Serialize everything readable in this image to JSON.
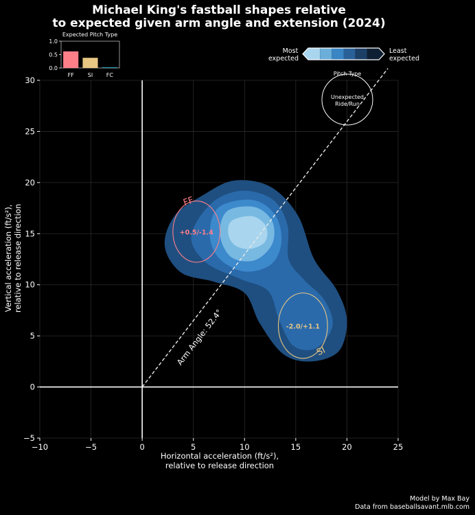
{
  "chart_data": {
    "type": "contour",
    "title_line1": "Michael King's fastball shapes relative",
    "title_line2": "to expected given arm angle and extension (2024)",
    "xlabel_line1": "Horizontal acceleration (ft/s²),",
    "xlabel_line2": "relative to release direction",
    "ylabel_line1": "Vertical acceleration (ft/s²),",
    "ylabel_line2": "relative to release direction",
    "xlim": [
      -10,
      25
    ],
    "ylim": [
      -5,
      30
    ],
    "xticks": [
      -10,
      -5,
      0,
      5,
      10,
      15,
      20,
      25
    ],
    "yticks": [
      -5,
      0,
      5,
      10,
      15,
      20,
      25,
      30
    ],
    "x_tick_labels": [
      "−10",
      "−5",
      "0",
      "5",
      "10",
      "15",
      "20",
      "25"
    ],
    "y_tick_labels": [
      "−5",
      "0",
      "5",
      "10",
      "15",
      "20",
      "25",
      "30"
    ],
    "arm_angle": {
      "label": "Arm Angle: 52.4°",
      "angle_deg": 52.4,
      "x_end": 24
    },
    "pitches": [
      {
        "name": "FF",
        "center": [
          5.3,
          15.2
        ],
        "radius_x": 2.3,
        "radius_y": 3.0,
        "label": "+0.5/-1.4",
        "color": "#ff7f89"
      },
      {
        "name": "SI",
        "center": [
          15.7,
          6.0
        ],
        "radius_x": 2.4,
        "radius_y": 3.2,
        "label": "-2.0/+1.1",
        "color": "#e8c684"
      }
    ],
    "density_levels": [
      {
        "level": 1,
        "color": "#1f4f80"
      },
      {
        "level": 2,
        "color": "#2a6aab"
      },
      {
        "level": 3,
        "color": "#3c89cc"
      },
      {
        "level": 4,
        "color": "#77b9e1"
      },
      {
        "level": 5,
        "color": "#a9d5ee"
      }
    ],
    "inset": {
      "title": "Expected Pitch Type",
      "categories": [
        "FF",
        "SI",
        "FC"
      ],
      "values": [
        0.62,
        0.38,
        0.03
      ],
      "colors": [
        "#ff7f89",
        "#e8c684",
        "#2a9bb0"
      ],
      "ylim": [
        0,
        1
      ],
      "yticks": [
        "0.0",
        "0.5",
        "1.0"
      ]
    },
    "colorbar": {
      "left_label_line1": "Most",
      "left_label_line2": "expected",
      "right_label_line1": "Least",
      "right_label_line2": "expected",
      "colors": [
        "#a9d5ee",
        "#6aaed9",
        "#3a85c4",
        "#2a6098",
        "#1c3f66",
        "#0e1f33"
      ]
    },
    "legend": {
      "title": "Pitch Type",
      "label_line1": "Unexpected",
      "label_line2": "Ride/Run"
    }
  },
  "credits": {
    "line1": "Model by Max Bay",
    "line2": "Data from baseballsavant.mlb.com"
  }
}
